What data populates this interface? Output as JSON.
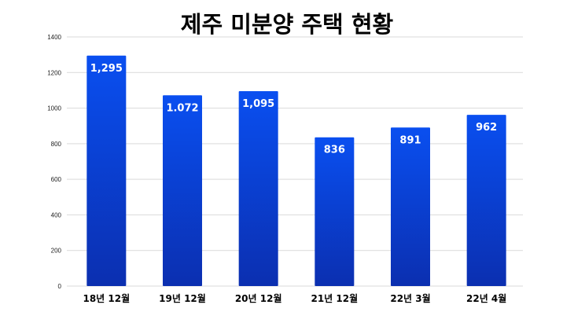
{
  "chart_data": {
    "type": "bar",
    "title": "제주 미분양 주택 현황",
    "categories": [
      "18년 12월",
      "19년 12월",
      "20년 12월",
      "21년 12월",
      "22년 3월",
      "22년 4월"
    ],
    "values": [
      1295,
      1072,
      1095,
      836,
      891,
      962
    ],
    "data_labels": [
      "1,295",
      "1.072",
      "1,095",
      "836",
      "891",
      "962"
    ],
    "y_ticks": [
      0,
      200,
      400,
      600,
      800,
      1000,
      1200,
      1400
    ],
    "ylim": [
      0,
      1400
    ],
    "grid": true,
    "legend": "none",
    "colors": {
      "bar_top": "#0a4ff0",
      "bar_bottom": "#0b2fb0",
      "grid": "#d9d9d9"
    }
  }
}
